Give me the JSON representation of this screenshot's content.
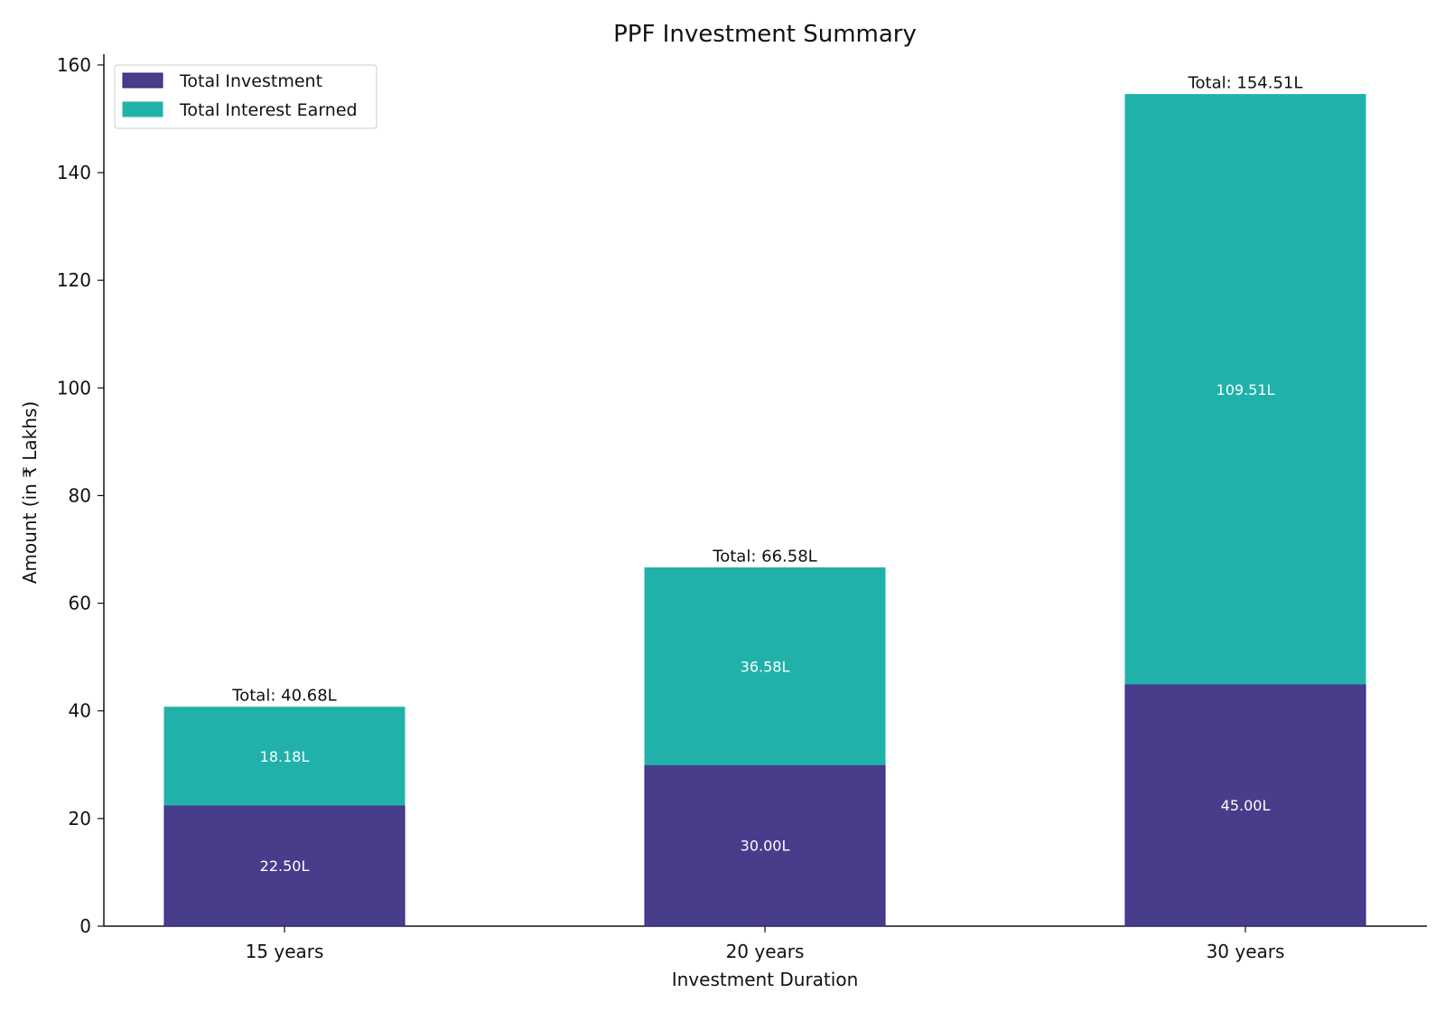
{
  "chart_data": {
    "type": "bar",
    "stacked": true,
    "title": "PPF Investment Summary",
    "xlabel": "Investment Duration",
    "ylabel": "Amount (in ₹ Lakhs)",
    "categories": [
      "15 years",
      "20 years",
      "30 years"
    ],
    "series": [
      {
        "name": "Total Investment",
        "color": "#483D8B",
        "values": [
          22.5,
          30.0,
          45.0
        ],
        "labels": [
          "22.50L",
          "30.00L",
          "45.00L"
        ]
      },
      {
        "name": "Total Interest Earned",
        "color": "#20B2AA",
        "values": [
          18.18,
          36.58,
          109.51
        ],
        "labels": [
          "18.18L",
          "36.58L",
          "109.51L"
        ]
      }
    ],
    "totals": [
      "Total: 40.68L",
      "Total: 66.58L",
      "Total: 154.51L"
    ],
    "ylim": [
      0,
      162
    ],
    "yticks": [
      0,
      20,
      40,
      60,
      80,
      100,
      120,
      140,
      160
    ],
    "ytick_labels": [
      "0",
      "20",
      "40",
      "60",
      "80",
      "100",
      "120",
      "140",
      "160"
    ],
    "grid": false,
    "legend": "top-left"
  }
}
